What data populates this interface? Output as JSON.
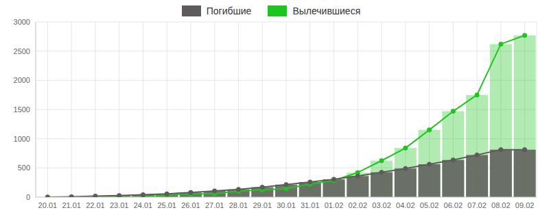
{
  "chart_data": {
    "type": "combo",
    "categories": [
      "20.01",
      "21.01",
      "22.01",
      "23.01",
      "24.01",
      "25.01",
      "26.01",
      "27.01",
      "28.01",
      "29.01",
      "30.01",
      "31.01",
      "01.02",
      "02.02",
      "03.02",
      "04.02",
      "05.02",
      "06.02",
      "07.02",
      "08.02",
      "09.02"
    ],
    "series": [
      {
        "name": "Погибшие",
        "color": "#5f5b5b",
        "marker": "circle",
        "values": [
          0,
          6,
          17,
          25,
          41,
          56,
          80,
          106,
          132,
          170,
          213,
          259,
          304,
          361,
          425,
          490,
          563,
          636,
          722,
          811,
          811
        ]
      },
      {
        "name": "Вылечившиеся",
        "color": "#1fc51f",
        "marker": "circle",
        "values": [
          0,
          0,
          0,
          0,
          0,
          36,
          49,
          60,
          103,
          124,
          143,
          222,
          284,
          420,
          624,
          840,
          1150,
          1470,
          1750,
          2620,
          2770
        ]
      }
    ],
    "ylim": [
      0,
      3000
    ],
    "yticks": [
      0,
      500,
      1000,
      1500,
      2000,
      2500,
      3000
    ],
    "grid": true,
    "legend": "top"
  }
}
